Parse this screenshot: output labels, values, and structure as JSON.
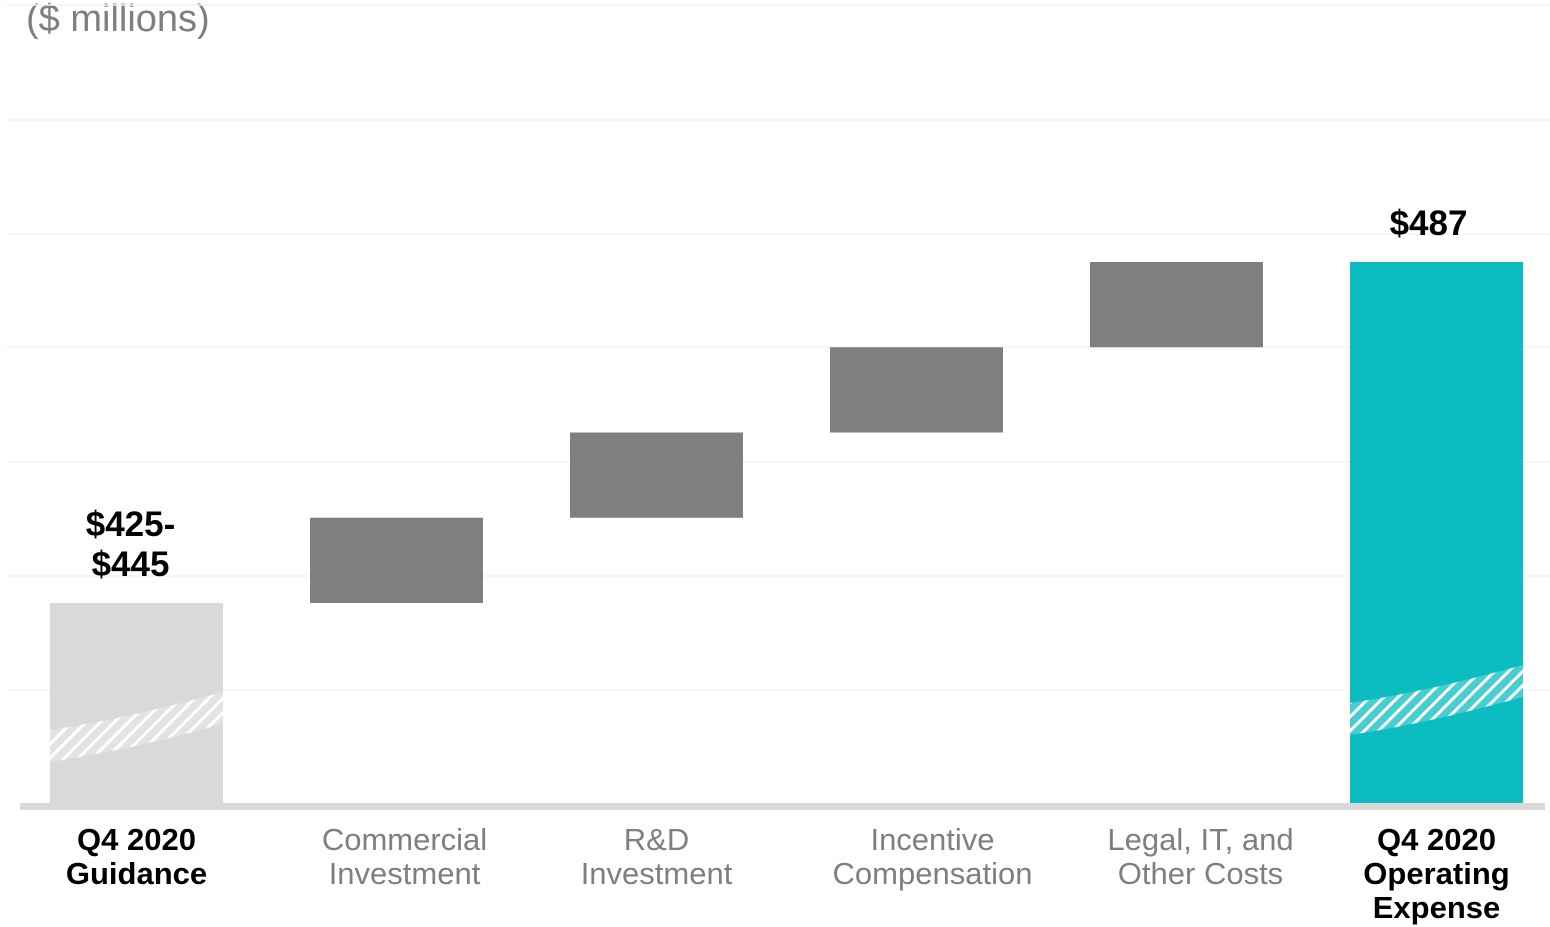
{
  "unit_label": "($ millions)",
  "chart_data": {
    "type": "bar",
    "subtype": "waterfall",
    "ylabel": "($ millions)",
    "categories": [
      "Q4 2020\nGuidance",
      "Commercial\nInvestment",
      "R&D\nInvestment",
      "Incentive\nCompensation",
      "Legal, IT, and\nOther Costs",
      "Q4 2020\nOperating\nExpense"
    ],
    "data_labels": [
      "$425-\n$445",
      "",
      "",
      "",
      "",
      "$487"
    ],
    "bars": [
      {
        "kind": "total",
        "start": 0,
        "end": 435,
        "range": [
          425,
          445
        ],
        "color": "#d9d9d9",
        "axis_break": true
      },
      {
        "kind": "increase",
        "start": 435,
        "end": 448,
        "color": "#7f7f7f"
      },
      {
        "kind": "increase",
        "start": 448,
        "end": 461,
        "color": "#7f7f7f"
      },
      {
        "kind": "increase",
        "start": 461,
        "end": 474,
        "color": "#7f7f7f"
      },
      {
        "kind": "increase",
        "start": 474,
        "end": 487,
        "color": "#7f7f7f"
      },
      {
        "kind": "total",
        "start": 0,
        "end": 487,
        "color": "#0bbcc0",
        "axis_break": true
      }
    ],
    "label_styles": [
      "bold",
      "light",
      "light",
      "light",
      "light",
      "bold"
    ],
    "grid": true,
    "legend": "none",
    "colors": {
      "guidance": "#d9d9d9",
      "increase": "#7f7f7f",
      "total": "#0bbcc0",
      "baseline": "#d9d9d9",
      "gridline": "#f2f2f2"
    }
  }
}
